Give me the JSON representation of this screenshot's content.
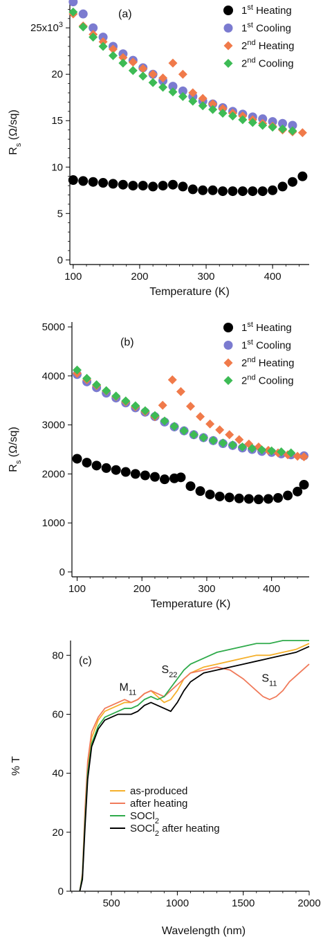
{
  "chart_data": [
    {
      "panel_label": "(a)",
      "type": "scatter",
      "xlabel": "Temperature (K)",
      "ylabel": "R",
      "ylabel_sub": "s",
      "ylabel_unit": "(Ω/sq)",
      "xlim": [
        95,
        455
      ],
      "ylim": [
        -0.5,
        28
      ],
      "xticks": [
        100,
        200,
        300,
        400
      ],
      "yticks": [
        {
          "v": 0,
          "label": "0"
        },
        {
          "v": 5,
          "label": "5"
        },
        {
          "v": 10,
          "label": "10"
        },
        {
          "v": 15,
          "label": "15"
        },
        {
          "v": 20,
          "label": "20"
        },
        {
          "v": 25,
          "label": "25x10",
          "sup": "3"
        }
      ],
      "grid": false,
      "legend_position": "top-right",
      "series": [
        {
          "name": "1",
          "name_sup": "st",
          "name_rest": " Heating",
          "marker": "circle-large",
          "color": "#000000",
          "x": [
            100,
            115,
            130,
            145,
            160,
            175,
            190,
            205,
            220,
            235,
            250,
            265,
            280,
            295,
            310,
            325,
            340,
            355,
            370,
            385,
            400,
            415,
            430,
            445
          ],
          "y": [
            8.6,
            8.5,
            8.4,
            8.3,
            8.2,
            8.1,
            8.0,
            8.0,
            7.9,
            8.0,
            8.1,
            7.9,
            7.6,
            7.5,
            7.5,
            7.4,
            7.4,
            7.4,
            7.4,
            7.4,
            7.5,
            7.9,
            8.4,
            9.0
          ]
        },
        {
          "name": "1",
          "name_sup": "st",
          "name_rest": " Cooling",
          "marker": "circle",
          "color": "#7b7bd0",
          "x": [
            100,
            115,
            130,
            145,
            160,
            175,
            190,
            205,
            220,
            235,
            250,
            265,
            280,
            295,
            310,
            325,
            340,
            355,
            370,
            385,
            400,
            415,
            430
          ],
          "y": [
            27.8,
            26.5,
            25.0,
            24.0,
            23.0,
            22.2,
            21.5,
            20.7,
            20.0,
            19.3,
            18.7,
            18.2,
            17.6,
            17.1,
            16.8,
            16.4,
            16.0,
            15.7,
            15.4,
            15.2,
            14.9,
            14.7,
            14.5
          ]
        },
        {
          "name": "2",
          "name_sup": "nd",
          "name_rest": " Heating",
          "marker": "diamond",
          "color": "#f07a4a",
          "x": [
            100,
            115,
            130,
            145,
            160,
            175,
            190,
            205,
            220,
            235,
            250,
            265,
            280,
            295,
            310,
            325,
            340,
            355,
            370,
            385,
            400,
            415,
            430,
            445
          ],
          "y": [
            26.5,
            25.2,
            24.3,
            23.5,
            22.7,
            21.8,
            21.3,
            20.6,
            20.0,
            19.6,
            21.2,
            20.0,
            18.0,
            17.4,
            16.8,
            16.3,
            15.8,
            15.5,
            15.1,
            14.7,
            14.4,
            14.0,
            13.8,
            13.7
          ]
        },
        {
          "name": "2",
          "name_sup": "nd",
          "name_rest": " Cooling",
          "marker": "diamond",
          "color": "#3dbb55",
          "x": [
            100,
            115,
            130,
            145,
            160,
            175,
            190,
            205,
            220,
            235,
            250,
            265,
            280,
            295,
            310,
            325,
            340,
            355,
            370,
            385,
            400,
            415,
            430
          ],
          "y": [
            26.7,
            25.1,
            24.0,
            23.0,
            22.0,
            21.2,
            20.4,
            19.8,
            19.1,
            18.6,
            18.1,
            17.6,
            17.1,
            16.6,
            16.2,
            15.8,
            15.5,
            15.1,
            14.8,
            14.5,
            14.3,
            14.1,
            13.9
          ]
        }
      ]
    },
    {
      "panel_label": "(b)",
      "type": "scatter",
      "xlabel": "Temperature (K)",
      "ylabel": "R",
      "ylabel_sub": "s",
      "ylabel_unit": "(Ω/sq)",
      "xlim": [
        92,
        458
      ],
      "ylim": [
        -100,
        5100
      ],
      "xticks": [
        100,
        200,
        300,
        400
      ],
      "yticks": [
        {
          "v": 0,
          "label": "0"
        },
        {
          "v": 1000,
          "label": "1000"
        },
        {
          "v": 2000,
          "label": "2000"
        },
        {
          "v": 3000,
          "label": "3000"
        },
        {
          "v": 4000,
          "label": "4000"
        },
        {
          "v": 5000,
          "label": "5000"
        }
      ],
      "grid": false,
      "legend_position": "top-right",
      "series": [
        {
          "name": "1",
          "name_sup": "st",
          "name_rest": " Heating",
          "marker": "circle-large",
          "color": "#000000",
          "x": [
            100,
            115,
            130,
            145,
            160,
            175,
            190,
            205,
            220,
            235,
            250,
            260,
            275,
            290,
            305,
            320,
            335,
            350,
            365,
            380,
            395,
            410,
            425,
            440,
            450
          ],
          "y": [
            2310,
            2230,
            2170,
            2120,
            2080,
            2040,
            2000,
            1970,
            1940,
            1890,
            1910,
            1930,
            1750,
            1650,
            1580,
            1540,
            1520,
            1500,
            1490,
            1480,
            1490,
            1510,
            1560,
            1640,
            1780
          ]
        },
        {
          "name": "1",
          "name_sup": "st",
          "name_rest": " Cooling",
          "marker": "circle",
          "color": "#7b7bd0",
          "x": [
            100,
            115,
            130,
            145,
            160,
            175,
            190,
            205,
            220,
            235,
            250,
            265,
            280,
            295,
            310,
            325,
            340,
            355,
            370,
            385,
            400,
            415,
            430,
            450
          ],
          "y": [
            4030,
            3880,
            3760,
            3650,
            3550,
            3450,
            3350,
            3260,
            3170,
            3060,
            2960,
            2880,
            2800,
            2740,
            2680,
            2620,
            2580,
            2530,
            2500,
            2460,
            2440,
            2410,
            2390,
            2370
          ]
        },
        {
          "name": "2",
          "name_sup": "nd",
          "name_rest": " Heating",
          "marker": "diamond",
          "color": "#f07a4a",
          "x": [
            100,
            115,
            130,
            145,
            160,
            175,
            190,
            205,
            220,
            232,
            247,
            260,
            275,
            290,
            305,
            320,
            335,
            350,
            365,
            380,
            395,
            410,
            425,
            440,
            450
          ],
          "y": [
            4050,
            3920,
            3800,
            3690,
            3580,
            3470,
            3370,
            3270,
            3170,
            3400,
            3920,
            3680,
            3380,
            3170,
            3020,
            2900,
            2800,
            2700,
            2610,
            2550,
            2480,
            2430,
            2390,
            2360,
            2350
          ]
        },
        {
          "name": "2",
          "name_sup": "nd",
          "name_rest": " Cooling",
          "marker": "diamond",
          "color": "#3dbb55",
          "x": [
            100,
            115,
            130,
            145,
            160,
            175,
            190,
            205,
            220,
            235,
            250,
            265,
            280,
            295,
            310,
            325,
            340,
            355,
            370,
            385,
            400,
            415,
            430
          ],
          "y": [
            4120,
            3950,
            3820,
            3700,
            3590,
            3490,
            3390,
            3290,
            3190,
            3080,
            2970,
            2880,
            2800,
            2740,
            2680,
            2630,
            2590,
            2550,
            2520,
            2490,
            2470,
            2450,
            2430
          ]
        }
      ]
    },
    {
      "panel_label": "(c)",
      "type": "line",
      "xlabel": "Wavelength (nm)",
      "ylabel": "% T",
      "xlim": [
        190,
        2000
      ],
      "ylim": [
        0,
        85
      ],
      "xticks": [
        500,
        1000,
        1500,
        2000
      ],
      "yticks": [
        {
          "v": 0,
          "label": "0"
        },
        {
          "v": 20,
          "label": "20"
        },
        {
          "v": 40,
          "label": "40"
        },
        {
          "v": 60,
          "label": "60"
        },
        {
          "v": 80,
          "label": "80"
        }
      ],
      "grid": false,
      "legend_position": "lower-center",
      "annotations": [
        {
          "text": "M",
          "sub": "11",
          "x": 560,
          "y": 68
        },
        {
          "text": "S",
          "sub": "22",
          "x": 880,
          "y": 74
        },
        {
          "text": "S",
          "sub": "11",
          "x": 1640,
          "y": 71
        }
      ],
      "series": [
        {
          "name": "as-produced",
          "color": "#f5b02b",
          "x": [
            260,
            280,
            300,
            320,
            350,
            400,
            450,
            500,
            550,
            600,
            650,
            700,
            750,
            800,
            850,
            900,
            950,
            1000,
            1050,
            1100,
            1200,
            1300,
            1400,
            1500,
            1600,
            1700,
            1800,
            1900,
            2000
          ],
          "y": [
            0,
            5,
            25,
            42,
            52,
            58,
            61,
            62,
            63,
            64,
            64,
            65,
            67,
            68,
            66,
            64,
            65,
            68,
            72,
            74,
            76,
            77,
            78,
            79,
            80,
            80,
            81,
            82,
            84
          ]
        },
        {
          "name": "after heating",
          "color": "#f07a5a",
          "x": [
            260,
            280,
            300,
            320,
            350,
            400,
            450,
            500,
            550,
            600,
            650,
            700,
            750,
            800,
            850,
            900,
            950,
            1000,
            1050,
            1100,
            1200,
            1300,
            1400,
            1500,
            1550,
            1600,
            1650,
            1700,
            1750,
            1800,
            1850,
            1900,
            1950,
            2000
          ],
          "y": [
            0,
            6,
            28,
            44,
            54,
            59,
            62,
            63,
            64,
            65,
            64,
            65,
            67,
            68,
            67,
            66,
            68,
            70,
            72,
            74,
            75,
            76,
            75,
            72,
            70,
            68,
            66,
            65,
            66,
            68,
            71,
            73,
            75,
            77
          ]
        },
        {
          "name": "SOCl",
          "name_sub": "2",
          "name_rest": "",
          "color": "#2eaa4a",
          "x": [
            260,
            280,
            300,
            320,
            350,
            400,
            450,
            500,
            550,
            600,
            650,
            700,
            750,
            800,
            850,
            900,
            950,
            1000,
            1050,
            1100,
            1200,
            1300,
            1400,
            1500,
            1600,
            1700,
            1800,
            1900,
            2000
          ],
          "y": [
            0,
            5,
            24,
            40,
            50,
            56,
            59,
            60,
            61,
            62,
            62,
            63,
            65,
            66,
            65,
            66,
            69,
            72,
            75,
            77,
            79,
            81,
            82,
            83,
            84,
            84,
            85,
            85,
            85
          ]
        },
        {
          "name": "SOCl",
          "name_sub": "2",
          "name_rest": " after heating",
          "color": "#000000",
          "x": [
            260,
            280,
            300,
            320,
            350,
            400,
            450,
            500,
            550,
            600,
            650,
            700,
            750,
            800,
            850,
            900,
            950,
            1000,
            1050,
            1100,
            1200,
            1300,
            1400,
            1500,
            1600,
            1700,
            1800,
            1900,
            2000
          ],
          "y": [
            0,
            4,
            22,
            38,
            49,
            55,
            58,
            59,
            60,
            60,
            60,
            61,
            63,
            64,
            63,
            62,
            61,
            64,
            68,
            71,
            74,
            75,
            76,
            77,
            78,
            79,
            80,
            81,
            83
          ]
        }
      ]
    }
  ]
}
